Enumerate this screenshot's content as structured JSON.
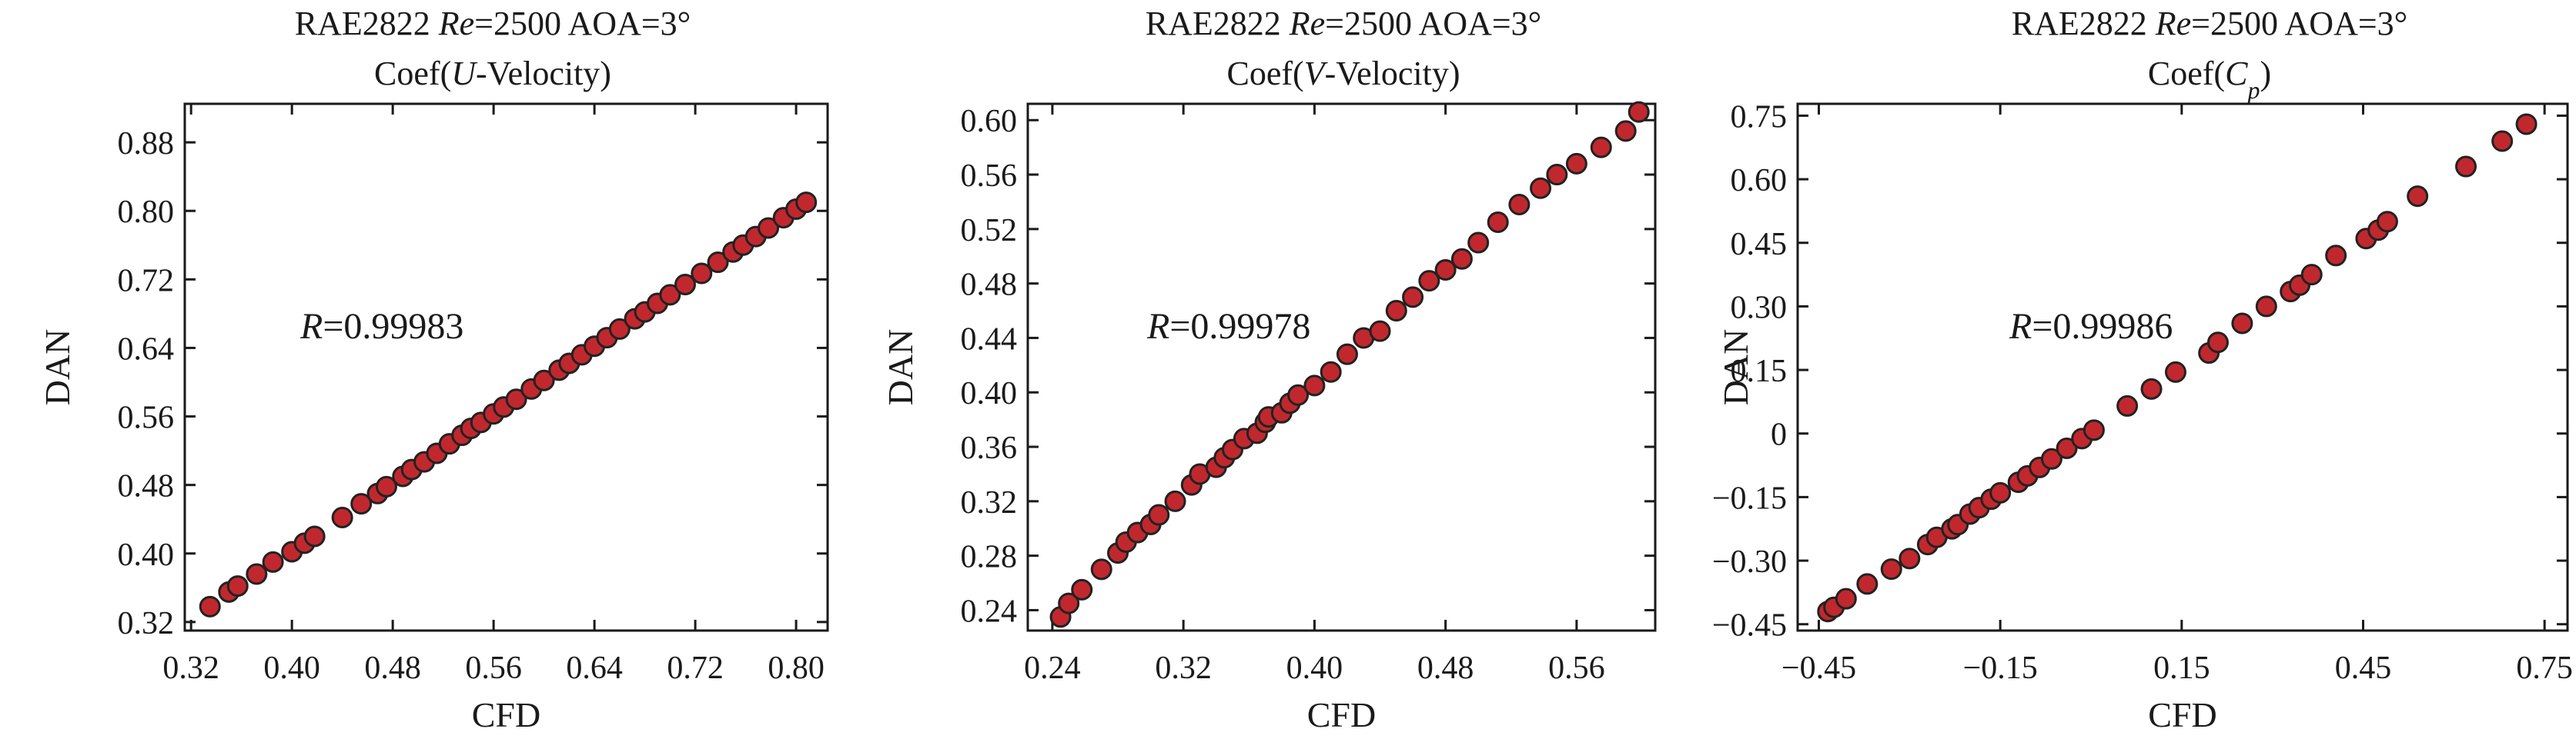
{
  "colors": {
    "marker_fill": "#c0282e",
    "marker_edge": "#222222",
    "axes": "#1a1a1a"
  },
  "chart_data": [
    {
      "type": "scatter",
      "title": {
        "line1_pre": "RAE2822 ",
        "line1_italic": "Re",
        "line1_post": "=2500 AOA=3°",
        "line2_pre": "Coef(",
        "line2_italic": "U",
        "line2_sub": "",
        "line2_post": "-Velocity)"
      },
      "xlabel": "CFD",
      "ylabel": "DAN",
      "annotation": {
        "italic": "R",
        "text": "=0.99983"
      },
      "xlim": [
        0.315,
        0.825
      ],
      "ylim": [
        0.31,
        0.925
      ],
      "xticks": [
        0.32,
        0.4,
        0.48,
        0.56,
        0.64,
        0.72,
        0.8
      ],
      "xtick_labels": [
        "0.32",
        "0.40",
        "0.48",
        "0.56",
        "0.64",
        "0.72",
        "0.80"
      ],
      "yticks": [
        0.32,
        0.4,
        0.48,
        0.56,
        0.64,
        0.72,
        0.8,
        0.88
      ],
      "ytick_labels": [
        "0.32",
        "0.40",
        "0.48",
        "0.56",
        "0.64",
        "0.72",
        "0.80",
        "0.88"
      ],
      "points": {
        "x": [
          0.335,
          0.35,
          0.357,
          0.372,
          0.385,
          0.4,
          0.41,
          0.418,
          0.44,
          0.455,
          0.468,
          0.475,
          0.488,
          0.495,
          0.505,
          0.515,
          0.525,
          0.535,
          0.542,
          0.55,
          0.56,
          0.568,
          0.578,
          0.59,
          0.6,
          0.612,
          0.62,
          0.63,
          0.64,
          0.65,
          0.66,
          0.672,
          0.68,
          0.69,
          0.7,
          0.712,
          0.725,
          0.738,
          0.75,
          0.758,
          0.768,
          0.778,
          0.79,
          0.8,
          0.808
        ],
        "y": [
          0.338,
          0.355,
          0.362,
          0.376,
          0.39,
          0.402,
          0.412,
          0.42,
          0.442,
          0.458,
          0.47,
          0.478,
          0.49,
          0.498,
          0.507,
          0.517,
          0.528,
          0.538,
          0.546,
          0.553,
          0.563,
          0.571,
          0.58,
          0.592,
          0.602,
          0.614,
          0.622,
          0.632,
          0.642,
          0.652,
          0.662,
          0.674,
          0.682,
          0.692,
          0.702,
          0.714,
          0.727,
          0.74,
          0.752,
          0.76,
          0.77,
          0.78,
          0.792,
          0.802,
          0.81
        ]
      }
    },
    {
      "type": "scatter",
      "title": {
        "line1_pre": "RAE2822 ",
        "line1_italic": "Re",
        "line1_post": "=2500 AOA=3°",
        "line2_pre": "Coef(",
        "line2_italic": "V",
        "line2_sub": "",
        "line2_post": "-Velocity)"
      },
      "xlabel": "CFD",
      "ylabel": "DAN",
      "annotation": {
        "italic": "R",
        "text": "=0.99978"
      },
      "xlim": [
        0.225,
        0.608
      ],
      "ylim": [
        0.225,
        0.612
      ],
      "xticks": [
        0.24,
        0.32,
        0.4,
        0.48,
        0.56
      ],
      "xtick_labels": [
        "0.24",
        "0.32",
        "0.40",
        "0.48",
        "0.56"
      ],
      "yticks": [
        0.24,
        0.28,
        0.32,
        0.36,
        0.4,
        0.44,
        0.48,
        0.52,
        0.56,
        0.6
      ],
      "ytick_labels": [
        "0.24",
        "0.28",
        "0.32",
        "0.36",
        "0.40",
        "0.44",
        "0.48",
        "0.52",
        "0.56",
        "0.60"
      ],
      "points": {
        "x": [
          0.245,
          0.25,
          0.258,
          0.27,
          0.28,
          0.285,
          0.292,
          0.3,
          0.305,
          0.315,
          0.325,
          0.33,
          0.34,
          0.345,
          0.35,
          0.357,
          0.365,
          0.37,
          0.372,
          0.38,
          0.385,
          0.39,
          0.4,
          0.41,
          0.42,
          0.43,
          0.44,
          0.45,
          0.46,
          0.47,
          0.48,
          0.49,
          0.5,
          0.512,
          0.525,
          0.538,
          0.548,
          0.56,
          0.575,
          0.59,
          0.598
        ],
        "y": [
          0.235,
          0.245,
          0.255,
          0.27,
          0.282,
          0.29,
          0.297,
          0.303,
          0.31,
          0.32,
          0.332,
          0.34,
          0.345,
          0.352,
          0.358,
          0.366,
          0.37,
          0.378,
          0.382,
          0.385,
          0.392,
          0.398,
          0.405,
          0.415,
          0.428,
          0.44,
          0.445,
          0.46,
          0.47,
          0.482,
          0.49,
          0.498,
          0.51,
          0.525,
          0.538,
          0.55,
          0.56,
          0.568,
          0.58,
          0.592,
          0.606
        ]
      }
    },
    {
      "type": "scatter",
      "title": {
        "line1_pre": "RAE2822 ",
        "line1_italic": "Re",
        "line1_post": "=2500 AOA=3°",
        "line2_pre": "Coef(",
        "line2_italic": "C",
        "line2_sub": "p",
        "line2_post": ")"
      },
      "xlabel": "CFD",
      "ylabel": "DAN",
      "annotation": {
        "italic": "R",
        "text": "=0.99986"
      },
      "xlim": [
        -0.485,
        0.788
      ],
      "ylim": [
        -0.465,
        0.778
      ],
      "xticks": [
        -0.45,
        -0.15,
        0.15,
        0.45,
        0.75
      ],
      "xtick_labels": [
        "−0.45",
        "−0.15",
        "0.15",
        "0.45",
        "0.75"
      ],
      "yticks": [
        -0.45,
        -0.3,
        -0.15,
        0,
        0.15,
        0.3,
        0.45,
        0.6,
        0.75
      ],
      "ytick_labels": [
        "−0.45",
        "−0.30",
        "−0.15",
        "0",
        "0.15",
        "0.30",
        "0.45",
        "0.60",
        "0.75"
      ],
      "points": {
        "x": [
          -0.435,
          -0.425,
          -0.405,
          -0.37,
          -0.33,
          -0.3,
          -0.27,
          -0.255,
          -0.23,
          -0.22,
          -0.2,
          -0.185,
          -0.165,
          -0.15,
          -0.12,
          -0.105,
          -0.085,
          -0.065,
          -0.04,
          -0.015,
          0.005,
          0.06,
          0.1,
          0.14,
          0.195,
          0.21,
          0.25,
          0.29,
          0.33,
          0.345,
          0.365,
          0.405,
          0.455,
          0.475,
          0.49,
          0.54,
          0.62,
          0.68,
          0.72
        ],
        "y": [
          -0.42,
          -0.41,
          -0.39,
          -0.355,
          -0.32,
          -0.295,
          -0.262,
          -0.245,
          -0.225,
          -0.215,
          -0.19,
          -0.175,
          -0.155,
          -0.14,
          -0.115,
          -0.1,
          -0.08,
          -0.06,
          -0.035,
          -0.012,
          0.008,
          0.065,
          0.105,
          0.145,
          0.19,
          0.215,
          0.26,
          0.3,
          0.335,
          0.35,
          0.375,
          0.42,
          0.46,
          0.48,
          0.5,
          0.56,
          0.63,
          0.69,
          0.73
        ]
      }
    }
  ]
}
